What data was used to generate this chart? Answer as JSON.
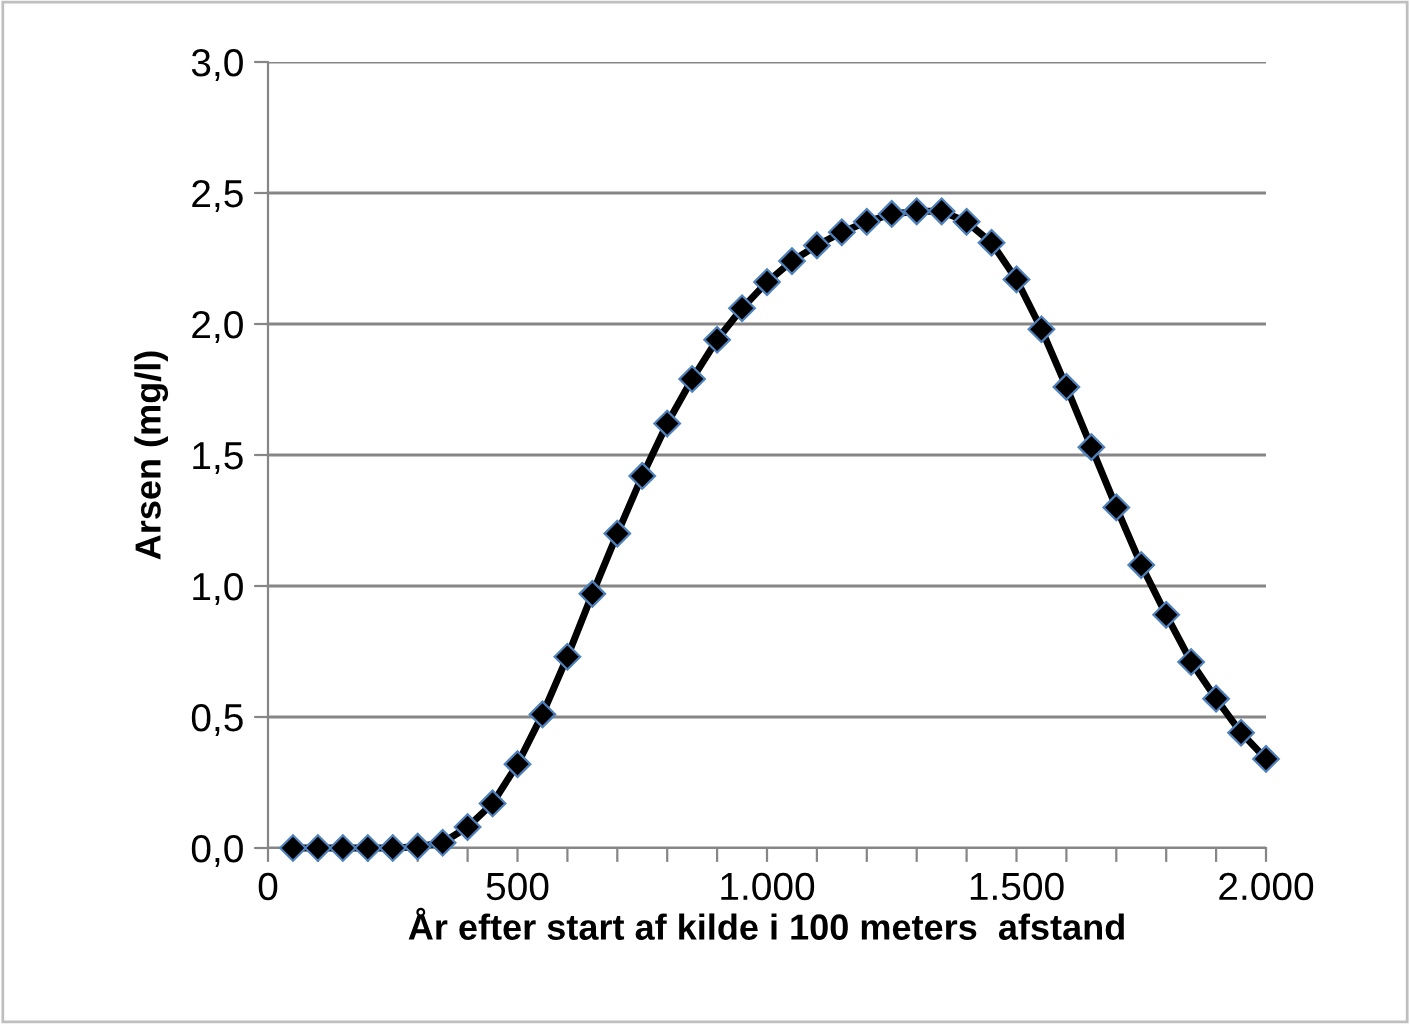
{
  "chart_data": {
    "type": "line",
    "xlabel": "År efter start af kilde i 100 meters  afstand",
    "ylabel": "Arsen (mg/l)",
    "x": [
      50,
      100,
      150,
      200,
      250,
      300,
      350,
      400,
      450,
      500,
      550,
      600,
      650,
      700,
      750,
      800,
      850,
      900,
      950,
      1000,
      1050,
      1100,
      1150,
      1200,
      1250,
      1300,
      1350,
      1400,
      1450,
      1500,
      1550,
      1600,
      1650,
      1700,
      1750,
      1800,
      1850,
      1900,
      1950,
      2000
    ],
    "series": [
      {
        "color": "#000000",
        "values": [
          0,
          0,
          0,
          0,
          0,
          0.005,
          0.02,
          0.08,
          0.17,
          0.32,
          0.51,
          0.73,
          0.97,
          1.2,
          1.42,
          1.62,
          1.79,
          1.94,
          2.06,
          2.16,
          2.24,
          2.3,
          2.35,
          2.39,
          2.42,
          2.43,
          2.43,
          2.39,
          2.31,
          2.17,
          1.98,
          1.76,
          1.53,
          1.3,
          1.08,
          0.89,
          0.71,
          0.57,
          0.44,
          0.34
        ]
      }
    ],
    "xlim": [
      0,
      2000
    ],
    "ylim": [
      0,
      3.0
    ],
    "xticks": [
      0,
      {
        "value": 100,
        "label": null
      },
      {
        "value": 200,
        "label": null
      },
      {
        "value": 300,
        "label": null
      },
      {
        "value": 400,
        "label": null
      },
      500,
      {
        "value": 600,
        "label": null
      },
      {
        "value": 700,
        "label": null
      },
      {
        "value": 800,
        "label": null
      },
      {
        "value": 900,
        "label": null
      },
      {
        "value": 1000,
        "label": "1.000"
      },
      {
        "value": 1100,
        "label": null
      },
      {
        "value": 1200,
        "label": null
      },
      {
        "value": 1300,
        "label": null
      },
      {
        "value": 1400,
        "label": null
      },
      {
        "value": 1500,
        "label": "1.500"
      },
      {
        "value": 1600,
        "label": null
      },
      {
        "value": 1700,
        "label": null
      },
      {
        "value": 1800,
        "label": null
      },
      {
        "value": 1900,
        "label": null
      },
      {
        "value": 2000,
        "label": "2.000"
      }
    ],
    "yticks": [
      {
        "value": 0,
        "label": "0,0"
      },
      {
        "value": 0.5,
        "label": "0,5"
      },
      {
        "value": 1.0,
        "label": "1,0"
      },
      {
        "value": 1.5,
        "label": "1,5"
      },
      {
        "value": 2.0,
        "label": "2,0"
      },
      {
        "value": 2.5,
        "label": "2,5"
      },
      {
        "value": 3.0,
        "label": "3,0"
      }
    ],
    "grid": "y",
    "marker": "diamond",
    "line_style": "solid",
    "legend": false
  }
}
